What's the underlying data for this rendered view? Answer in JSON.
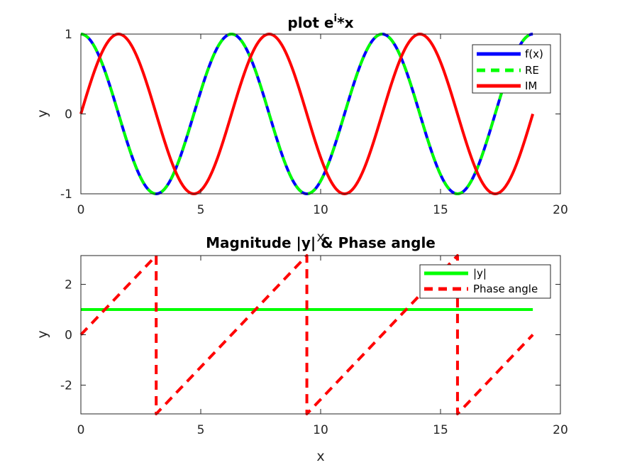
{
  "chart_data": [
    {
      "type": "line",
      "title": "plot e",
      "title_superscript": "i",
      "title_suffix": "*x",
      "xlabel": "x",
      "ylabel": "y",
      "xlim": [
        0,
        20
      ],
      "ylim": [
        -1,
        1
      ],
      "xticks": [
        "0",
        "5",
        "10",
        "15",
        "20"
      ],
      "yticks": [
        "-1",
        "0",
        "1"
      ],
      "x_domain": [
        0,
        18.8496
      ],
      "legend_position": "top-right",
      "grid": false,
      "series": [
        {
          "name": "f(x)",
          "function": "cos",
          "color": "#0000ff",
          "style": "solid",
          "x": [
            0,
            1.5708,
            3.1416,
            4.7124,
            6.2832,
            7.854,
            9.4248,
            10.9956,
            12.5664,
            14.1372,
            15.708,
            17.2788,
            18.8496
          ],
          "y": [
            1,
            0,
            -1,
            0,
            1,
            0,
            -1,
            0,
            1,
            0,
            -1,
            0,
            1
          ]
        },
        {
          "name": "RE",
          "function": "cos",
          "color": "#00ff00",
          "style": "dashed",
          "x": [
            0,
            1.5708,
            3.1416,
            4.7124,
            6.2832,
            7.854,
            9.4248,
            10.9956,
            12.5664,
            14.1372,
            15.708,
            17.2788,
            18.8496
          ],
          "y": [
            1,
            0,
            -1,
            0,
            1,
            0,
            -1,
            0,
            1,
            0,
            -1,
            0,
            1
          ]
        },
        {
          "name": "IM",
          "function": "sin",
          "color": "#ff0000",
          "style": "solid",
          "x": [
            0,
            1.5708,
            3.1416,
            4.7124,
            6.2832,
            7.854,
            9.4248,
            10.9956,
            12.5664,
            14.1372,
            15.708,
            17.2788,
            18.8496
          ],
          "y": [
            0,
            1,
            0,
            -1,
            0,
            1,
            0,
            -1,
            0,
            1,
            0,
            -1,
            0
          ]
        }
      ]
    },
    {
      "type": "line",
      "title": "Magnitude |y| & Phase angle",
      "xlabel": "x",
      "ylabel": "y",
      "xlim": [
        0,
        20
      ],
      "ylim": [
        -3.1416,
        3.1416
      ],
      "xticks": [
        "0",
        "5",
        "10",
        "15",
        "20"
      ],
      "yticks": [
        "-2",
        "0",
        "2"
      ],
      "x_domain": [
        0,
        18.8496
      ],
      "legend_position": "top-right",
      "grid": false,
      "series": [
        {
          "name": "|y|",
          "function": "abs",
          "color": "#00ff00",
          "style": "solid",
          "x": [
            0,
            18.8496
          ],
          "y": [
            1,
            1
          ]
        },
        {
          "name": "Phase angle",
          "function": "angle",
          "color": "#ff0000",
          "style": "dashed",
          "x": [
            0,
            3.1416,
            3.1416,
            9.4248,
            9.4248,
            15.708,
            15.708,
            18.8496
          ],
          "y": [
            0,
            3.1416,
            -3.1416,
            3.1416,
            -3.1416,
            3.1416,
            -3.1416,
            0
          ]
        }
      ]
    }
  ]
}
